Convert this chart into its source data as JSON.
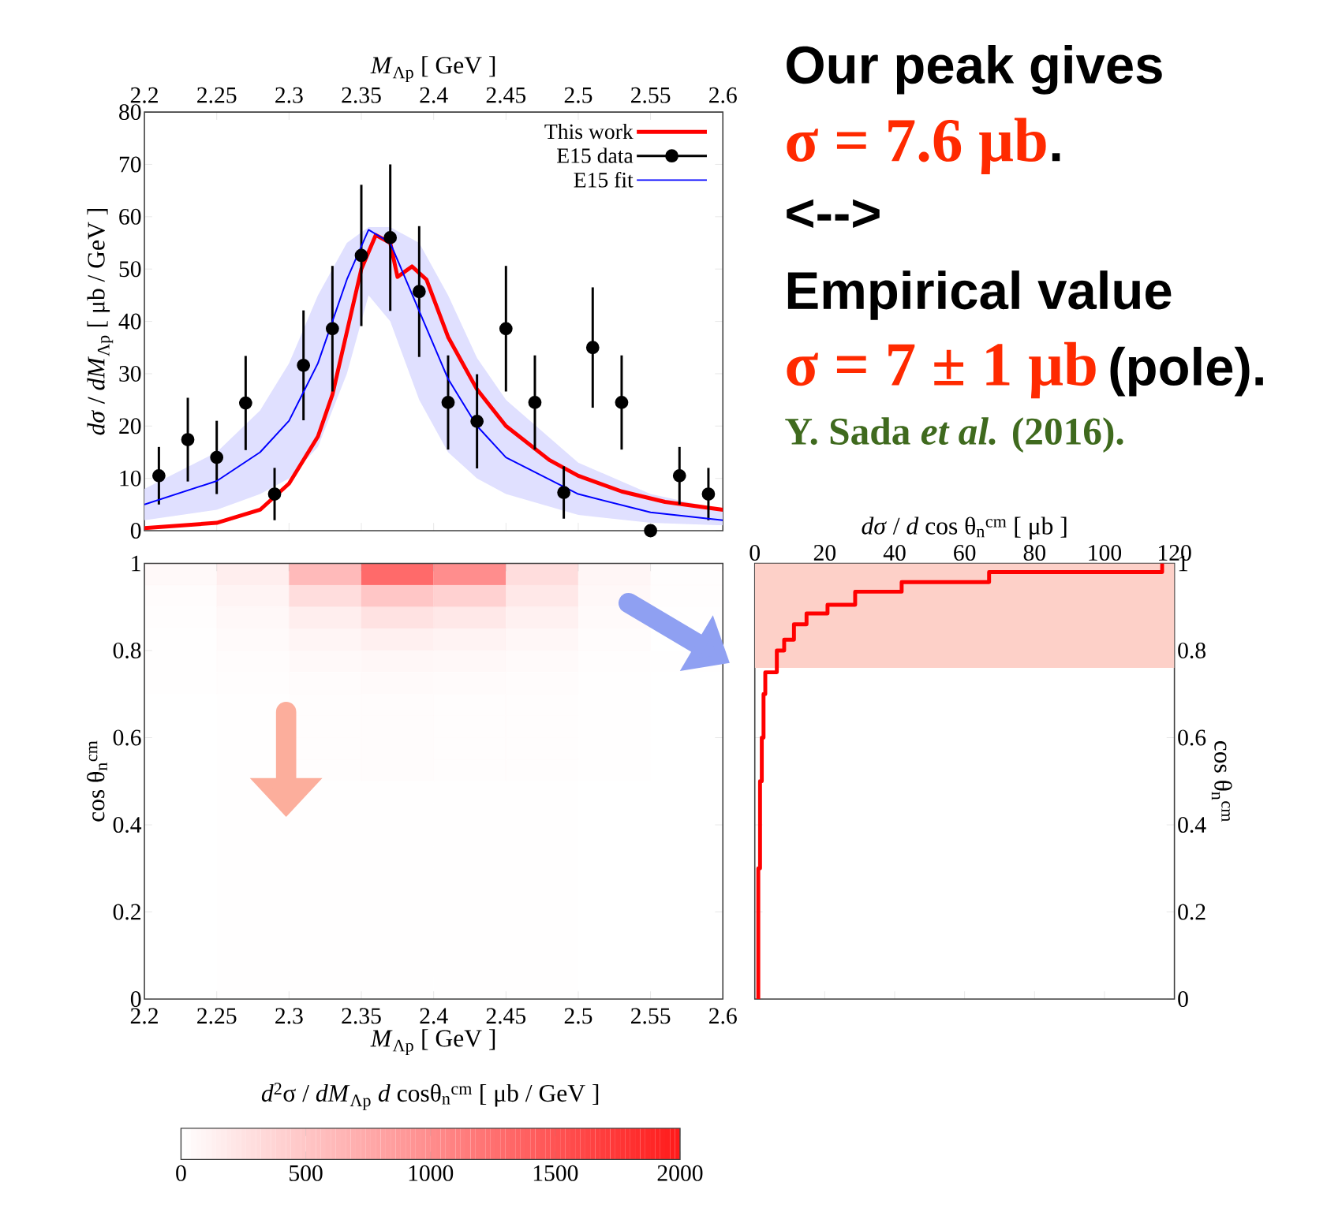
{
  "chart_data": [
    {
      "type": "line",
      "xlabel": "*M*$_{Λp}$  [ GeV ]",
      "ylabel": "*dσ* / *dM*$_{Λp}$  [ μb / GeV ]",
      "xlim": [
        2.2,
        2.6
      ],
      "xticks": [
        2.2,
        2.25,
        2.3,
        2.35,
        2.4,
        2.45,
        2.5,
        2.55,
        2.6
      ],
      "ylim": [
        0,
        80
      ],
      "yticks": [
        0,
        10,
        20,
        30,
        40,
        50,
        60,
        70,
        80
      ],
      "legend": "top right",
      "series": [
        {
          "name": "This work",
          "color": "#ff0000",
          "x": [
            2.2,
            2.25,
            2.28,
            2.3,
            2.32,
            2.33,
            2.34,
            2.35,
            2.36,
            2.37,
            2.375,
            2.385,
            2.395,
            2.41,
            2.43,
            2.45,
            2.48,
            2.5,
            2.53,
            2.56,
            2.6
          ],
          "values": [
            0.5,
            1.5,
            4,
            9,
            18,
            26,
            38,
            50,
            56.5,
            55,
            48.5,
            50.5,
            48,
            37,
            27,
            20,
            13.5,
            10.5,
            7.5,
            5.5,
            4
          ]
        },
        {
          "name": "E15 data",
          "type": "scatter",
          "marker": "circle",
          "color": "#000000",
          "x": [
            2.21,
            2.23,
            2.25,
            2.27,
            2.29,
            2.31,
            2.33,
            2.35,
            2.37,
            2.39,
            2.41,
            2.43,
            2.45,
            2.47,
            2.49,
            2.51,
            2.53,
            2.55,
            2.57,
            2.59
          ],
          "values": [
            10.5,
            17.4,
            14,
            24.4,
            7,
            31.6,
            38.6,
            52.6,
            56,
            45.7,
            24.5,
            20.9,
            38.6,
            24.5,
            7.3,
            35,
            24.5,
            0,
            10.5,
            7
          ],
          "errors": [
            5.5,
            8,
            7,
            9,
            5,
            10.5,
            12,
            13.5,
            14,
            12.5,
            9,
            9,
            12,
            9,
            5,
            11.5,
            9,
            null,
            5.5,
            5
          ]
        },
        {
          "name": "E15 fit",
          "color": "#0000ff",
          "x": [
            2.2,
            2.25,
            2.28,
            2.3,
            2.32,
            2.34,
            2.355,
            2.37,
            2.39,
            2.41,
            2.43,
            2.45,
            2.5,
            2.55,
            2.6
          ],
          "values": [
            5,
            9.5,
            15,
            21,
            32,
            48,
            57.5,
            55,
            42,
            29,
            20,
            14,
            7,
            3.5,
            2
          ],
          "lower": [
            2,
            4,
            7,
            10,
            16,
            30,
            45,
            40,
            25,
            15,
            10,
            7,
            3,
            1.5,
            1
          ],
          "upper": [
            8,
            15,
            23,
            32,
            45,
            55,
            58,
            58,
            55,
            45,
            33,
            25,
            13,
            7,
            4
          ]
        }
      ]
    },
    {
      "type": "heatmap",
      "xlabel": "*M*$_{Λp}$  [ GeV ]",
      "ylabel": "cos θ$_{n}$$^{cm}$",
      "clabel": "*d*$^{2}$σ / *dM*$_{Λp}$ *d* cosθ$_{n}$$^{cm}$  [ μb / GeV ]",
      "xlim": [
        2.2,
        2.6
      ],
      "xticks": [
        2.2,
        2.25,
        2.3,
        2.35,
        2.4,
        2.45,
        2.5,
        2.55,
        2.6
      ],
      "ylim": [
        0,
        1
      ],
      "yticks": [
        0,
        0.2,
        0.4,
        0.6,
        0.8,
        1
      ],
      "clim": [
        0,
        2000
      ],
      "cticks": [
        0,
        500,
        1000,
        1500,
        2000
      ],
      "cells": [
        [
          50,
          150,
          600,
          1300,
          1000,
          300,
          80,
          20
        ],
        [
          30,
          100,
          300,
          500,
          400,
          200,
          60,
          15
        ],
        [
          20,
          60,
          150,
          250,
          200,
          120,
          40,
          10
        ],
        [
          10,
          40,
          90,
          130,
          110,
          70,
          25,
          null
        ],
        [
          5,
          25,
          50,
          70,
          60,
          40,
          15,
          5
        ],
        [
          5,
          15,
          30,
          40,
          35,
          25,
          10,
          0
        ],
        [
          0,
          10,
          20,
          25,
          20,
          15,
          5,
          0
        ],
        [
          0,
          10,
          20,
          25,
          20,
          15,
          5,
          0
        ],
        [
          0,
          10,
          20,
          25,
          20,
          15,
          5,
          0
        ],
        [
          0,
          10,
          20,
          25,
          20,
          15,
          5,
          0
        ],
        [
          0,
          5,
          10,
          10,
          10,
          5,
          0,
          0
        ],
        [
          0,
          5,
          10,
          10,
          10,
          5,
          0,
          0
        ],
        [
          0,
          5,
          10,
          10,
          10,
          5,
          0,
          0
        ],
        [
          0,
          5,
          10,
          10,
          10,
          5,
          0,
          0
        ],
        [
          0,
          5,
          10,
          10,
          10,
          5,
          0,
          0
        ],
        [
          0,
          5,
          10,
          10,
          10,
          5,
          0,
          0
        ],
        [
          0,
          5,
          10,
          10,
          10,
          5,
          0,
          0
        ],
        [
          0,
          5,
          10,
          10,
          10,
          5,
          0,
          0
        ],
        [
          0,
          5,
          10,
          10,
          10,
          5,
          0,
          0
        ],
        [
          0,
          5,
          10,
          10,
          10,
          5,
          0,
          0
        ]
      ]
    },
    {
      "type": "step",
      "orientation": "horizontal",
      "xlabel": "*dσ* / *d* cos θ$_{n}$$^{cm}$  [ μb ]",
      "ylabel": "cos θ$_{n}$$^{cm}$",
      "xlim": [
        0,
        120
      ],
      "xticks": [
        0,
        20,
        40,
        60,
        80,
        100,
        120
      ],
      "ylim": [
        0,
        1
      ],
      "yticks": [
        0,
        0.2,
        0.4,
        0.6,
        0.8,
        1
      ],
      "color": "#ff0000",
      "x": [
        0,
        0.3,
        0.5,
        0.6,
        0.7,
        0.75,
        0.8,
        0.825,
        0.86,
        0.885,
        0.905,
        0.935,
        0.957,
        0.98,
        1
      ],
      "values": [
        1,
        1.5,
        2,
        2.5,
        3,
        6.3,
        8.4,
        11.2,
        14.8,
        20.8,
        28.7,
        42,
        67,
        116.5,
        116.5
      ],
      "bands": [
        {
          "axis": "y",
          "from": 0.76,
          "to": 1,
          "color": "#fdd0c8"
        }
      ]
    },
    {
      "type": "other",
      "annotations": [
        "Our peak gives",
        "σ = 7.6 μb",
        ".",
        "<-->",
        "Empirical value",
        "σ = 7 ± 1 μb",
        "(pole).",
        "Y. Sada *et al.* (2016)."
      ]
    }
  ]
}
